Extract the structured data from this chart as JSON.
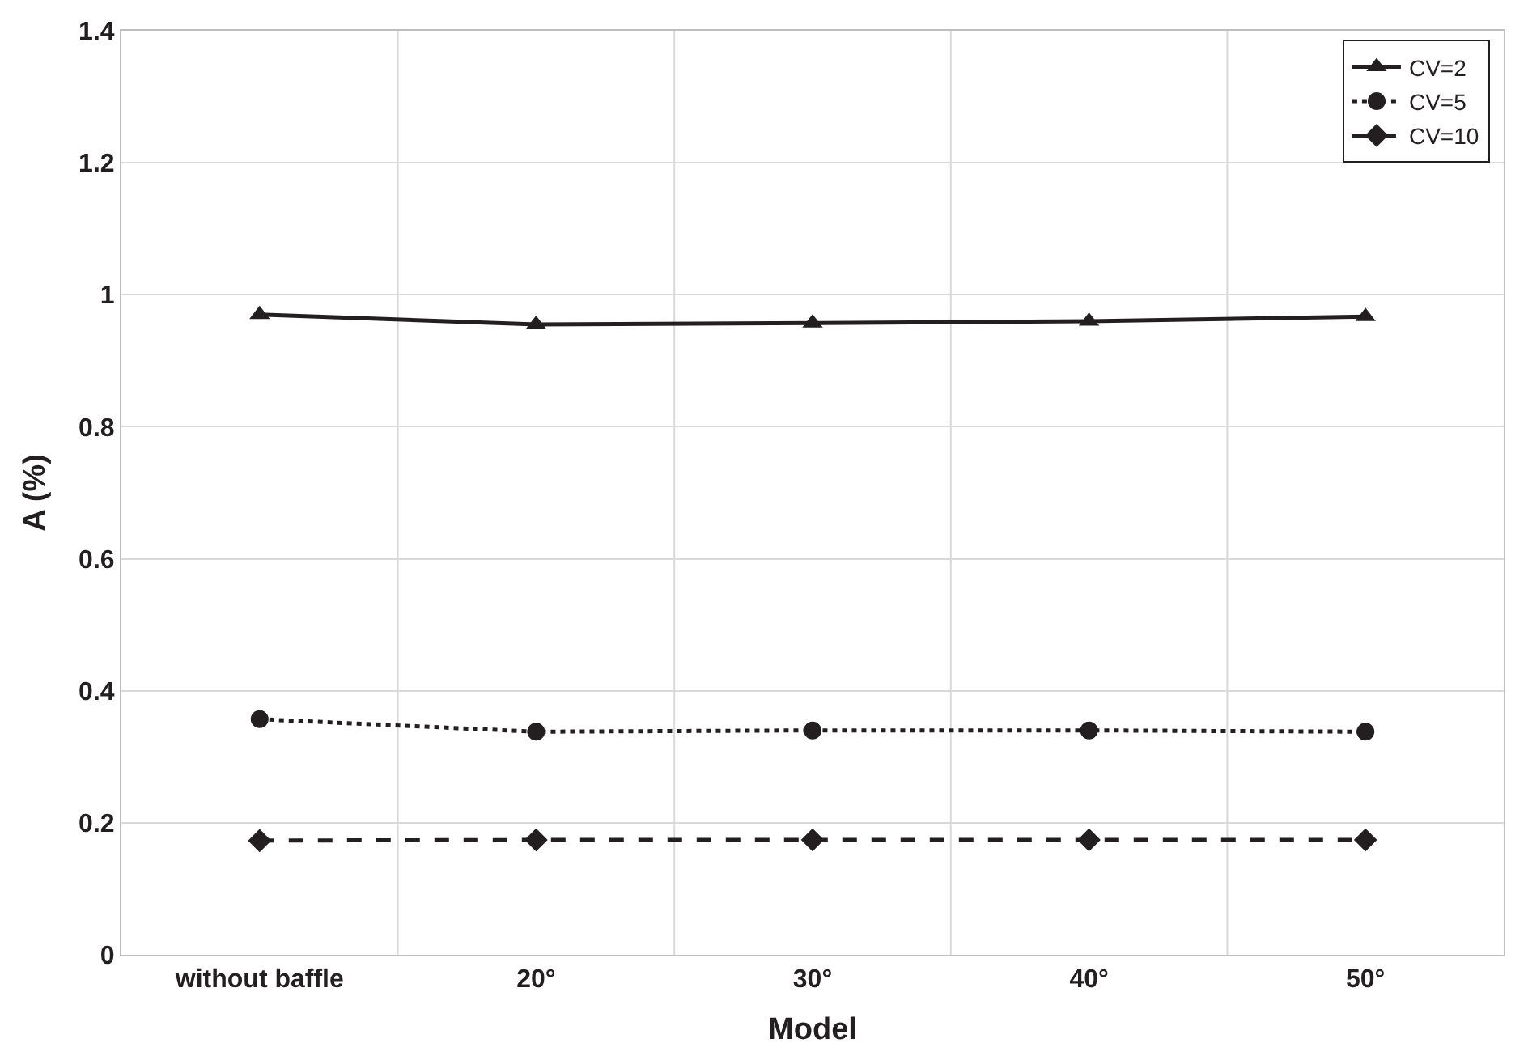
{
  "chart_data": {
    "type": "line",
    "xlabel": "Model",
    "ylabel": "A (%)",
    "categories": [
      "without baffle",
      "20°",
      "30°",
      "40°",
      "50°"
    ],
    "series": [
      {
        "name": "CV=2",
        "color": "#231f20",
        "marker": "triangle",
        "line_style": "solid",
        "values": [
          0.97,
          0.955,
          0.957,
          0.96,
          0.967
        ]
      },
      {
        "name": "CV=5",
        "color": "#231f20",
        "marker": "circle",
        "line_style": "dotted",
        "values": [
          0.357,
          0.338,
          0.34,
          0.34,
          0.338
        ]
      },
      {
        "name": "CV=10",
        "color": "#231f20",
        "marker": "diamond",
        "line_style": "dashed",
        "values": [
          0.173,
          0.174,
          0.174,
          0.174,
          0.174
        ]
      }
    ],
    "ylim": [
      0,
      1.4
    ],
    "yticks": [
      0,
      0.2,
      0.4,
      0.6,
      0.8,
      1,
      1.2,
      1.4
    ],
    "grid": true,
    "legend": "top right"
  }
}
